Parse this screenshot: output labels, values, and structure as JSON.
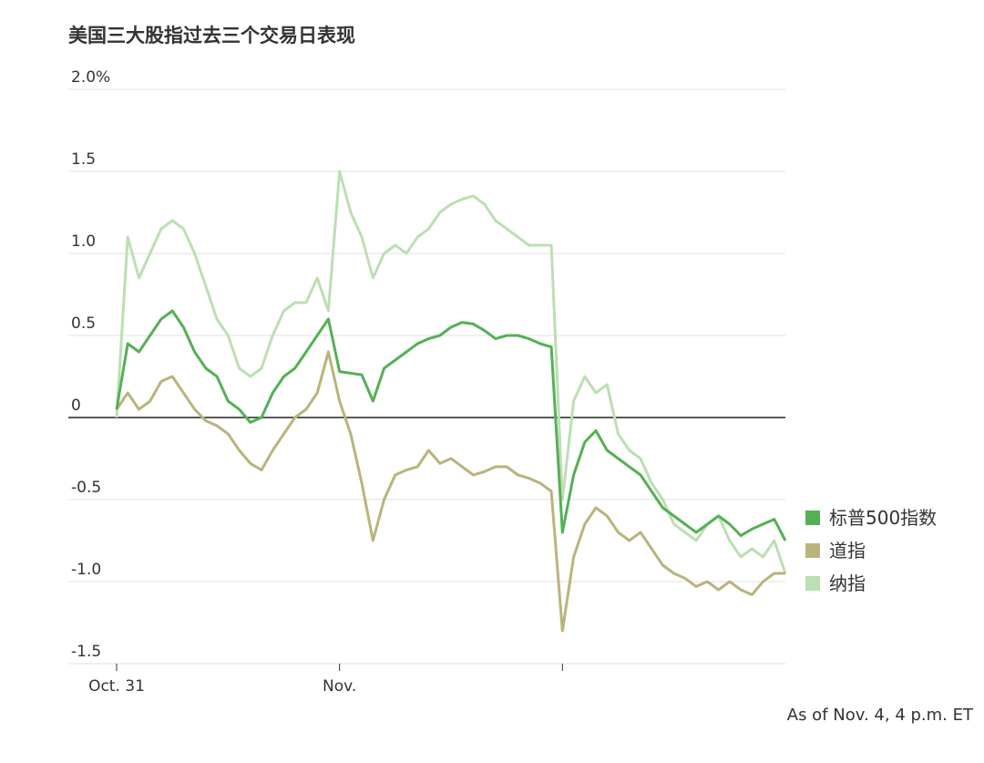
{
  "chart_data": {
    "type": "line",
    "title": "美国三大股指过去三个交易日表现",
    "note": "As of Nov. 4, 4 p.m. ET",
    "x": [
      0,
      2,
      4,
      6,
      8,
      10,
      12,
      14,
      16,
      18,
      20,
      22,
      24,
      26,
      28,
      30,
      32,
      34,
      36,
      38,
      40,
      42,
      44,
      46,
      48,
      50,
      52,
      54,
      56,
      58,
      60,
      62,
      64,
      66,
      68,
      70,
      72,
      74,
      76,
      78,
      80,
      82,
      84,
      86,
      88,
      90,
      92,
      94,
      96,
      98,
      100,
      102,
      104,
      106,
      108,
      110,
      112,
      114,
      116,
      118,
      120
    ],
    "xlim": [
      0,
      120
    ],
    "xticks": [
      {
        "value": 0,
        "label": "Oct. 31"
      },
      {
        "value": 40,
        "label": "Nov."
      },
      {
        "value": 80,
        "label": null
      }
    ],
    "ylim": [
      -1.5,
      2
    ],
    "yticks": [
      {
        "value": 2,
        "label": "2.0%"
      },
      1.5,
      {
        "value": 1,
        "label": "1.0"
      },
      0.5,
      0,
      -0.5,
      {
        "value": -1,
        "label": "-1.0"
      },
      -1.5
    ],
    "grid": true,
    "legend": "right",
    "series": [
      {
        "name": "标普500指数",
        "color": "#55b055",
        "values": [
          0.05,
          0.45,
          0.4,
          0.5,
          0.6,
          0.65,
          0.55,
          0.4,
          0.3,
          0.25,
          0.1,
          0.05,
          -0.03,
          0.0,
          0.15,
          0.25,
          0.3,
          0.4,
          0.5,
          0.6,
          0.28,
          0.27,
          0.26,
          0.1,
          0.3,
          0.35,
          0.4,
          0.45,
          0.48,
          0.5,
          0.55,
          0.58,
          0.57,
          0.53,
          0.48,
          0.5,
          0.5,
          0.48,
          0.45,
          0.43,
          -0.7,
          -0.35,
          -0.15,
          -0.08,
          -0.2,
          -0.25,
          -0.3,
          -0.35,
          -0.45,
          -0.55,
          -0.6,
          -0.65,
          -0.7,
          -0.65,
          -0.6,
          -0.65,
          -0.72,
          -0.68,
          -0.65,
          -0.62,
          -0.75
        ]
      },
      {
        "name": "道指",
        "color": "#bab47c",
        "values": [
          0.05,
          0.15,
          0.05,
          0.1,
          0.22,
          0.25,
          0.15,
          0.05,
          -0.02,
          -0.05,
          -0.1,
          -0.2,
          -0.28,
          -0.32,
          -0.2,
          -0.1,
          0.0,
          0.05,
          0.15,
          0.4,
          0.1,
          -0.1,
          -0.4,
          -0.75,
          -0.5,
          -0.35,
          -0.32,
          -0.3,
          -0.2,
          -0.28,
          -0.25,
          -0.3,
          -0.35,
          -0.33,
          -0.3,
          -0.3,
          -0.35,
          -0.37,
          -0.4,
          -0.45,
          -1.3,
          -0.85,
          -0.65,
          -0.55,
          -0.6,
          -0.7,
          -0.75,
          -0.7,
          -0.8,
          -0.9,
          -0.95,
          -0.98,
          -1.03,
          -1.0,
          -1.05,
          -1.0,
          -1.05,
          -1.08,
          -1.0,
          -0.95,
          -0.95
        ]
      },
      {
        "name": "纳指",
        "color": "#bcdfb3",
        "values": [
          0.0,
          1.1,
          0.85,
          1.0,
          1.15,
          1.2,
          1.15,
          1.0,
          0.8,
          0.6,
          0.5,
          0.3,
          0.25,
          0.3,
          0.5,
          0.65,
          0.7,
          0.7,
          0.85,
          0.65,
          1.5,
          1.25,
          1.1,
          0.85,
          1.0,
          1.05,
          1.0,
          1.1,
          1.15,
          1.25,
          1.3,
          1.33,
          1.35,
          1.3,
          1.2,
          1.15,
          1.1,
          1.05,
          1.05,
          1.05,
          -0.5,
          0.1,
          0.25,
          0.15,
          0.2,
          -0.1,
          -0.2,
          -0.25,
          -0.4,
          -0.5,
          -0.65,
          -0.7,
          -0.75,
          -0.65,
          -0.6,
          -0.75,
          -0.85,
          -0.8,
          -0.85,
          -0.75,
          -0.95
        ]
      }
    ]
  }
}
